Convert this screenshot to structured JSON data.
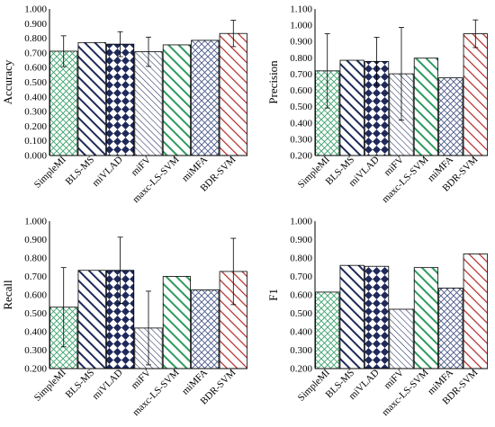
{
  "chart_data": [
    {
      "type": "bar",
      "ylabel": "Accuracy",
      "categories": [
        "SimpleMI",
        "BLS-MS",
        "miVLAD",
        "miFV",
        "maxc-LS-SVM",
        "miMFA",
        "BDR-SVM"
      ],
      "values": [
        0.712,
        0.771,
        0.76,
        0.708,
        0.755,
        0.786,
        0.833
      ],
      "errors": [
        0.105,
        null,
        0.085,
        0.1,
        null,
        null,
        0.09
      ],
      "ylim": [
        0.0,
        1.0
      ],
      "yticks": [
        "0.000",
        "0.100",
        "0.200",
        "0.300",
        "0.400",
        "0.500",
        "0.600",
        "0.700",
        "0.800",
        "0.900",
        "1.000"
      ]
    },
    {
      "type": "bar",
      "ylabel": "Precision",
      "categories": [
        "SimpleMI",
        "BLS-MS",
        "miVLAD",
        "miFV",
        "maxc-LS-SVM",
        "miMFA",
        "BDR-SVM"
      ],
      "values": [
        0.72,
        0.785,
        0.778,
        0.702,
        0.798,
        0.677,
        0.948
      ],
      "errors": [
        0.228,
        null,
        0.148,
        0.285,
        null,
        null,
        0.085
      ],
      "ylim": [
        0.2,
        1.1
      ],
      "yticks": [
        "0.200",
        "0.300",
        "0.400",
        "0.500",
        "0.600",
        "0.700",
        "0.800",
        "0.900",
        "1.000",
        "1.100"
      ]
    },
    {
      "type": "bar",
      "ylabel": "Recall",
      "categories": [
        "SimpleMI",
        "BLS-MS",
        "miVLAD",
        "miFV",
        "maxc-LS-SVM",
        "miMFA",
        "BDR-SVM"
      ],
      "values": [
        0.533,
        0.733,
        0.733,
        0.42,
        0.7,
        0.627,
        0.727
      ],
      "errors": [
        0.215,
        null,
        0.18,
        0.2,
        null,
        null,
        0.18
      ],
      "ylim": [
        0.2,
        1.0
      ],
      "yticks": [
        "0.200",
        "0.300",
        "0.400",
        "0.500",
        "0.600",
        "0.700",
        "0.800",
        "0.900",
        "1.000"
      ]
    },
    {
      "type": "bar",
      "ylabel": "F1",
      "categories": [
        "SimpleMI",
        "BLS-MS",
        "miVLAD",
        "miFV",
        "maxc-LS-SVM",
        "miMFA",
        "BDR-SVM"
      ],
      "values": [
        0.615,
        0.76,
        0.755,
        0.522,
        0.748,
        0.637,
        0.822
      ],
      "errors": [
        null,
        null,
        null,
        null,
        null,
        null,
        null
      ],
      "ylim": [
        0.2,
        1.0
      ],
      "yticks": [
        "0.200",
        "0.300",
        "0.400",
        "0.500",
        "0.600",
        "0.700",
        "0.800",
        "0.900",
        "1.000"
      ]
    }
  ],
  "bar_styles": [
    {
      "pattern": "crosshatch",
      "color": "#3aa36b"
    },
    {
      "pattern": "diagonal",
      "color": "#1f2a5a"
    },
    {
      "pattern": "diamond",
      "color": "#1f2a5a"
    },
    {
      "pattern": "diagonal-thin",
      "color": "#1f2a5a"
    },
    {
      "pattern": "diagonal",
      "color": "#2e9b5e"
    },
    {
      "pattern": "crosshatch",
      "color": "#4a5a8a"
    },
    {
      "pattern": "diagonal",
      "color": "#b3302e"
    }
  ]
}
